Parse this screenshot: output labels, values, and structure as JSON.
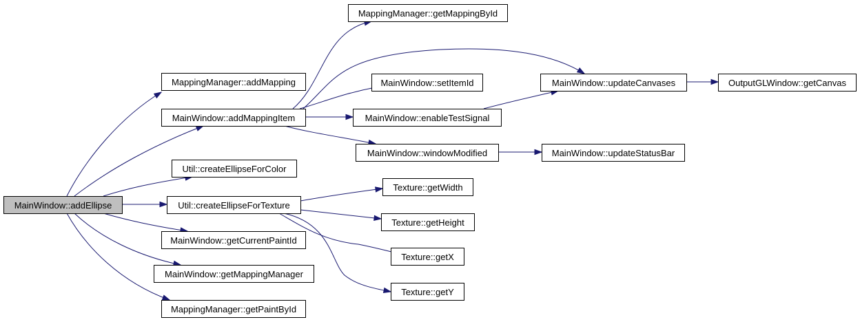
{
  "graph": {
    "nodes": [
      {
        "id": "addEllipse",
        "label": "MainWindow::addEllipse",
        "root": true
      },
      {
        "id": "addMapping",
        "label": "MappingManager::addMapping"
      },
      {
        "id": "addMappingItem",
        "label": "MainWindow::addMappingItem"
      },
      {
        "id": "createEllipseForColor",
        "label": "Util::createEllipseForColor"
      },
      {
        "id": "createEllipseForTexture",
        "label": "Util::createEllipseForTexture"
      },
      {
        "id": "getCurrentPaintId",
        "label": "MainWindow::getCurrentPaintId"
      },
      {
        "id": "getMappingManager",
        "label": "MainWindow::getMappingManager"
      },
      {
        "id": "getPaintById",
        "label": "MappingManager::getPaintById"
      },
      {
        "id": "getMappingById",
        "label": "MappingManager::getMappingById"
      },
      {
        "id": "setItemId",
        "label": "MainWindow::setItemId"
      },
      {
        "id": "enableTestSignal",
        "label": "MainWindow::enableTestSignal"
      },
      {
        "id": "windowModified",
        "label": "MainWindow::windowModified"
      },
      {
        "id": "updateCanvases",
        "label": "MainWindow::updateCanvases"
      },
      {
        "id": "getCanvas",
        "label": "OutputGLWindow::getCanvas"
      },
      {
        "id": "updateStatusBar",
        "label": "MainWindow::updateStatusBar"
      },
      {
        "id": "getWidth",
        "label": "Texture::getWidth"
      },
      {
        "id": "getHeight",
        "label": "Texture::getHeight"
      },
      {
        "id": "getX",
        "label": "Texture::getX"
      },
      {
        "id": "getY",
        "label": "Texture::getY"
      }
    ],
    "edges": [
      {
        "from": "addEllipse",
        "to": "addMapping"
      },
      {
        "from": "addEllipse",
        "to": "addMappingItem"
      },
      {
        "from": "addEllipse",
        "to": "createEllipseForColor"
      },
      {
        "from": "addEllipse",
        "to": "createEllipseForTexture"
      },
      {
        "from": "addEllipse",
        "to": "getCurrentPaintId"
      },
      {
        "from": "addEllipse",
        "to": "getMappingManager"
      },
      {
        "from": "addEllipse",
        "to": "getPaintById"
      },
      {
        "from": "addMappingItem",
        "to": "getMappingById"
      },
      {
        "from": "addMappingItem",
        "to": "updateCanvases"
      },
      {
        "from": "addMappingItem",
        "to": "setItemId"
      },
      {
        "from": "addMappingItem",
        "to": "enableTestSignal"
      },
      {
        "from": "addMappingItem",
        "to": "windowModified"
      },
      {
        "from": "enableTestSignal",
        "to": "updateCanvases"
      },
      {
        "from": "updateCanvases",
        "to": "getCanvas"
      },
      {
        "from": "windowModified",
        "to": "updateStatusBar"
      },
      {
        "from": "createEllipseForTexture",
        "to": "getWidth"
      },
      {
        "from": "createEllipseForTexture",
        "to": "getHeight"
      },
      {
        "from": "createEllipseForTexture",
        "to": "getX"
      },
      {
        "from": "createEllipseForTexture",
        "to": "getY"
      }
    ],
    "colors": {
      "edge": "#191970",
      "root_fill": "#bfbfbf",
      "node_fill": "#ffffff",
      "border": "#000000"
    }
  }
}
